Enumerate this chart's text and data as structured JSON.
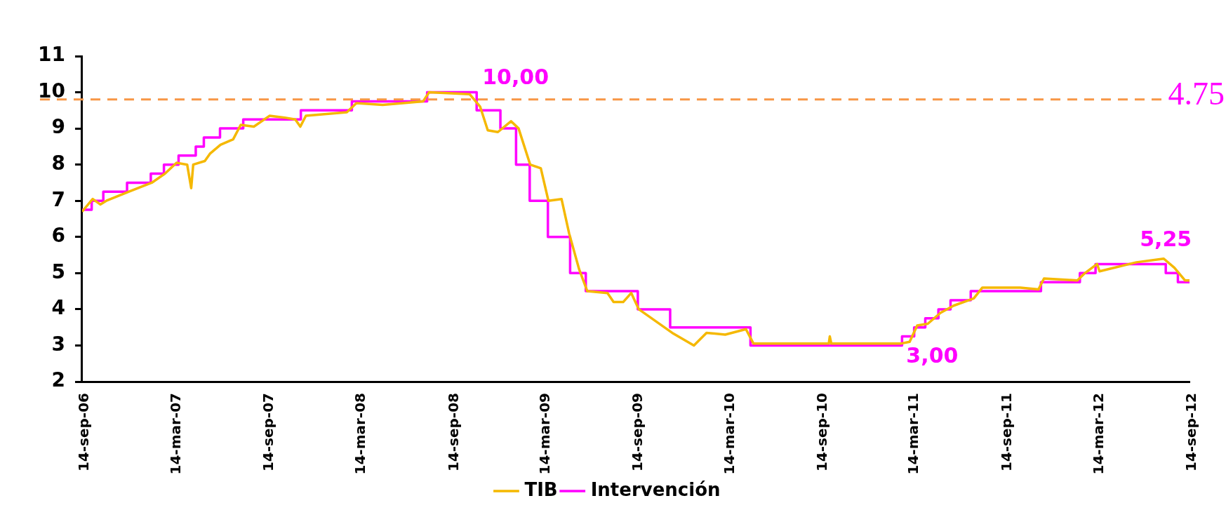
{
  "chart_data": {
    "type": "line",
    "xlim": [
      "2006-09-14",
      "2012-09-14"
    ],
    "xticks": [
      {
        "value": "2006-09-14",
        "label": "14-sep-06"
      },
      {
        "value": "2007-03-14",
        "label": "14-mar-07"
      },
      {
        "value": "2007-09-14",
        "label": "14-sep-07"
      },
      {
        "value": "2008-03-14",
        "label": "14-mar-08"
      },
      {
        "value": "2008-09-14",
        "label": "14-sep-08"
      },
      {
        "value": "2009-03-14",
        "label": "14-mar-09"
      },
      {
        "value": "2009-09-14",
        "label": "14-sep-09"
      },
      {
        "value": "2010-03-14",
        "label": "14-mar-10"
      },
      {
        "value": "2010-09-14",
        "label": "14-sep-10"
      },
      {
        "value": "2011-03-14",
        "label": "14-mar-11"
      },
      {
        "value": "2011-09-14",
        "label": "14-sep-11"
      },
      {
        "value": "2012-03-14",
        "label": "14-mar-12"
      },
      {
        "value": "2012-09-14",
        "label": "14-sep-12"
      }
    ],
    "ylim": [
      2,
      11
    ],
    "yticks": [
      2,
      3,
      4,
      5,
      6,
      7,
      8,
      9,
      10,
      11
    ],
    "grid": false,
    "legend": "bottom",
    "marker": "none",
    "series": [
      {
        "name": "TIB",
        "type": "line",
        "color": "#f5b800",
        "x": [
          "2006-09-14",
          "2006-10-05",
          "2006-10-20",
          "2006-11-01",
          "2006-12-15",
          "2007-01-30",
          "2007-02-25",
          "2007-03-20",
          "2007-04-10",
          "2007-04-18",
          "2007-04-22",
          "2007-05-15",
          "2007-05-25",
          "2007-06-15",
          "2007-07-10",
          "2007-07-25",
          "2007-08-20",
          "2007-09-20",
          "2007-10-20",
          "2007-11-10",
          "2007-11-20",
          "2007-12-01",
          "2008-02-20",
          "2008-03-10",
          "2008-05-01",
          "2008-07-20",
          "2008-08-01",
          "2008-10-20",
          "2008-11-10",
          "2008-11-25",
          "2008-12-15",
          "2009-01-10",
          "2009-01-25",
          "2009-02-17",
          "2009-03-10",
          "2009-03-25",
          "2009-04-20",
          "2009-05-05",
          "2009-05-25",
          "2009-06-10",
          "2009-07-20",
          "2009-08-01",
          "2009-08-20",
          "2009-09-05",
          "2009-09-20",
          "2009-11-25",
          "2010-01-07",
          "2010-02-01",
          "2010-03-10",
          "2010-04-20",
          "2010-05-05",
          "2010-10-01",
          "2010-10-03",
          "2010-10-06",
          "2011-02-20",
          "2011-03-10",
          "2011-03-25",
          "2011-04-15",
          "2011-05-10",
          "2011-06-05",
          "2011-07-15",
          "2011-08-01",
          "2011-10-15",
          "2011-11-20",
          "2011-12-01",
          "2012-02-05",
          "2012-02-20",
          "2012-03-15",
          "2012-03-20",
          "2012-06-01",
          "2012-07-25",
          "2012-08-15",
          "2012-09-05",
          "2012-09-14"
        ],
        "values": [
          6.7,
          7.05,
          6.9,
          7.0,
          7.25,
          7.5,
          7.75,
          8.05,
          8.0,
          7.35,
          8.0,
          8.1,
          8.3,
          8.55,
          8.7,
          9.1,
          9.05,
          9.35,
          9.3,
          9.25,
          9.05,
          9.35,
          9.45,
          9.7,
          9.65,
          9.75,
          10.0,
          9.95,
          9.6,
          8.95,
          8.9,
          9.2,
          9.0,
          8.0,
          7.9,
          7.0,
          7.05,
          6.1,
          5.1,
          4.5,
          4.45,
          4.2,
          4.2,
          4.45,
          4.0,
          3.35,
          3.0,
          3.35,
          3.3,
          3.45,
          3.05,
          3.05,
          3.25,
          3.05,
          3.05,
          3.1,
          3.55,
          3.6,
          3.9,
          4.1,
          4.3,
          4.6,
          4.6,
          4.55,
          4.85,
          4.8,
          5.0,
          5.25,
          5.05,
          5.3,
          5.4,
          5.15,
          4.8,
          4.8
        ]
      },
      {
        "name": "Intervención",
        "type": "step",
        "color": "#ff00ff",
        "x": [
          "2006-09-14",
          "2006-10-03",
          "2006-10-26",
          "2006-12-12",
          "2007-01-28",
          "2007-02-23",
          "2007-03-24",
          "2007-04-27",
          "2007-05-13",
          "2007-06-14",
          "2007-07-30",
          "2007-11-21",
          "2008-03-01",
          "2008-07-28",
          "2008-11-03",
          "2008-12-20",
          "2009-01-20",
          "2009-02-16",
          "2009-03-24",
          "2009-05-07",
          "2009-06-07",
          "2009-09-18",
          "2009-11-21",
          "2010-04-29",
          "2011-02-23",
          "2011-03-19",
          "2011-04-10",
          "2011-05-06",
          "2011-05-30",
          "2011-07-09",
          "2011-11-25",
          "2012-02-10",
          "2012-03-12",
          "2012-07-29",
          "2012-08-22",
          "2012-09-14"
        ],
        "values": [
          6.75,
          7.0,
          7.25,
          7.5,
          7.75,
          8.0,
          8.25,
          8.5,
          8.75,
          9.0,
          9.25,
          9.5,
          9.75,
          10.0,
          9.5,
          9.0,
          8.0,
          7.0,
          6.0,
          5.0,
          4.5,
          4.0,
          3.5,
          3.0,
          3.25,
          3.5,
          3.75,
          4.0,
          4.25,
          4.5,
          4.75,
          5.0,
          5.25,
          5.0,
          4.75,
          4.75
        ]
      }
    ],
    "ref_lines": [
      {
        "axis": "y",
        "value": 9.8,
        "color": "#f79646",
        "line_style": "dashed"
      }
    ],
    "annotations": [
      "4.75",
      {
        "text": "10,00",
        "x": "2008-11-03",
        "y": 10
      },
      {
        "text": "3,00",
        "x": "2011-02-23",
        "y": 3
      },
      {
        "text": "5,25",
        "x": "2012-07-29",
        "y": 5.25
      }
    ]
  }
}
